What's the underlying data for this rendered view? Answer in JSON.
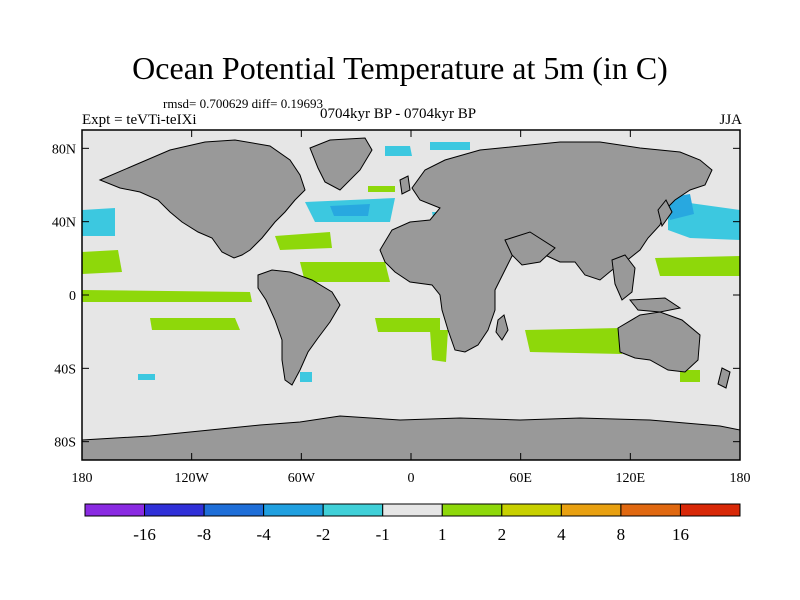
{
  "title": "Ocean Potential Temperature at 5m (in C)",
  "stats": "rmsd= 0.700629 diff= 0.19693",
  "experiment": "Expt = teVTi-teIXi",
  "period": "0704kyr BP - 0704kyr BP",
  "season": "JJA",
  "colors": {
    "land": "#999999",
    "ocean_neutral": "#e6e6e6",
    "cyan": "#3cc8e0",
    "light_blue": "#28a8e0",
    "green": "#8ed80a"
  },
  "map": {
    "lon_range": [
      -180,
      180
    ],
    "lat_range": [
      -90,
      90
    ],
    "x_ticks": [
      {
        "value": -180,
        "label": "180"
      },
      {
        "value": -120,
        "label": "120W"
      },
      {
        "value": -60,
        "label": "60W"
      },
      {
        "value": 0,
        "label": "0"
      },
      {
        "value": 60,
        "label": "60E"
      },
      {
        "value": 120,
        "label": "120E"
      },
      {
        "value": 180,
        "label": "180"
      }
    ],
    "y_ticks": [
      {
        "value": 80,
        "label": "80N"
      },
      {
        "value": 40,
        "label": "40N"
      },
      {
        "value": 0,
        "label": "0"
      },
      {
        "value": -40,
        "label": "40S"
      },
      {
        "value": -80,
        "label": "80S"
      }
    ]
  },
  "colorbar": {
    "colors": [
      "#8a2be2",
      "#3030d8",
      "#1e6ed8",
      "#20a0e0",
      "#40d0d8",
      "#e6e6e6",
      "#8ed80a",
      "#c8d000",
      "#e8a010",
      "#e06810",
      "#d82808"
    ],
    "labels": [
      "-16",
      "-8",
      "-4",
      "-2",
      "-1",
      "1",
      "2",
      "4",
      "8",
      "16"
    ]
  }
}
